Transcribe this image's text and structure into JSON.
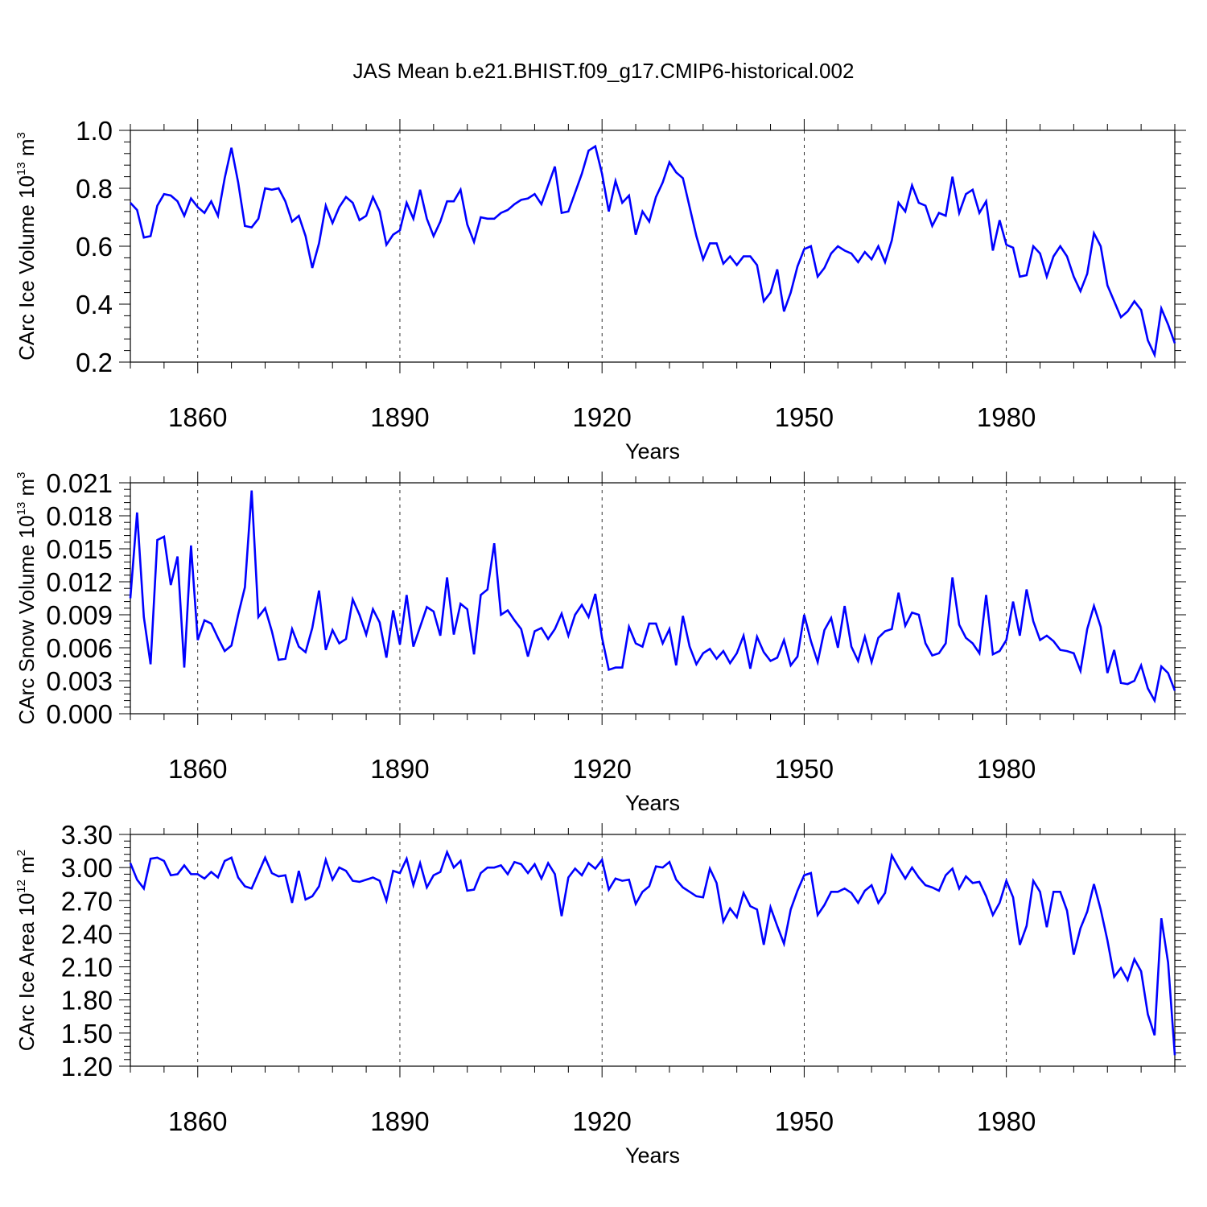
{
  "figure_title": "JAS Mean b.e21.BHIST.f09_g17.CMIP6-historical.002",
  "series_color": "#0000ff",
  "chart_data": [
    {
      "type": "line",
      "title": "",
      "xlabel": "Years",
      "ylabel_parts": [
        "CArc Ice Volume 10",
        "13",
        " m",
        "3"
      ],
      "xlim": [
        1850,
        2005
      ],
      "ylim": [
        0.2,
        1.0
      ],
      "xticks": [
        1860,
        1890,
        1920,
        1950,
        1980
      ],
      "xtick_labels": [
        "1860",
        "1890",
        "1920",
        "1950",
        "1980"
      ],
      "yticks": [
        0.2,
        0.4,
        0.6,
        0.8,
        1.0
      ],
      "ytick_labels": [
        "0.2",
        "0.4",
        "0.6",
        "0.8",
        "1.0"
      ],
      "x_start": 1850,
      "series": [
        {
          "name": "CArc Ice Volume",
          "values": [
            0.75,
            0.725,
            0.63,
            0.635,
            0.74,
            0.78,
            0.775,
            0.755,
            0.705,
            0.765,
            0.735,
            0.715,
            0.755,
            0.705,
            0.835,
            0.94,
            0.82,
            0.67,
            0.665,
            0.695,
            0.8,
            0.795,
            0.8,
            0.755,
            0.685,
            0.705,
            0.635,
            0.525,
            0.61,
            0.74,
            0.68,
            0.735,
            0.77,
            0.75,
            0.69,
            0.705,
            0.77,
            0.72,
            0.605,
            0.64,
            0.655,
            0.75,
            0.695,
            0.795,
            0.695,
            0.635,
            0.685,
            0.755,
            0.755,
            0.795,
            0.675,
            0.615,
            0.7,
            0.695,
            0.695,
            0.715,
            0.725,
            0.745,
            0.76,
            0.765,
            0.78,
            0.745,
            0.81,
            0.875,
            0.715,
            0.72,
            0.785,
            0.85,
            0.93,
            0.945,
            0.85,
            0.72,
            0.825,
            0.75,
            0.775,
            0.64,
            0.72,
            0.685,
            0.77,
            0.82,
            0.89,
            0.855,
            0.835,
            0.735,
            0.635,
            0.555,
            0.61,
            0.61,
            0.54,
            0.565,
            0.535,
            0.565,
            0.565,
            0.535,
            0.41,
            0.44,
            0.52,
            0.375,
            0.44,
            0.53,
            0.59,
            0.6,
            0.495,
            0.525,
            0.575,
            0.6,
            0.585,
            0.575,
            0.545,
            0.58,
            0.555,
            0.6,
            0.545,
            0.62,
            0.75,
            0.72,
            0.81,
            0.75,
            0.74,
            0.67,
            0.715,
            0.705,
            0.84,
            0.715,
            0.78,
            0.795,
            0.715,
            0.755,
            0.585,
            0.69,
            0.605,
            0.595,
            0.495,
            0.5,
            0.6,
            0.575,
            0.495,
            0.565,
            0.6,
            0.565,
            0.495,
            0.445,
            0.505,
            0.645,
            0.6,
            0.465,
            0.41,
            0.355,
            0.375,
            0.41,
            0.38,
            0.275,
            0.225,
            0.385,
            0.33,
            0.265
          ]
        }
      ]
    },
    {
      "type": "line",
      "title": "",
      "xlabel": "Years",
      "ylabel_parts": [
        "CArc Snow Volume 10",
        "13",
        " m",
        "3"
      ],
      "xlim": [
        1850,
        2005
      ],
      "ylim": [
        0.0,
        0.021
      ],
      "xticks": [
        1860,
        1890,
        1920,
        1950,
        1980
      ],
      "xtick_labels": [
        "1860",
        "1890",
        "1920",
        "1950",
        "1980"
      ],
      "yticks": [
        0.0,
        0.003,
        0.006,
        0.009,
        0.012,
        0.015,
        0.018,
        0.021
      ],
      "ytick_labels": [
        "0.000",
        "0.003",
        "0.006",
        "0.009",
        "0.012",
        "0.015",
        "0.018",
        "0.021"
      ],
      "x_start": 1850,
      "series": [
        {
          "name": "CArc Snow Volume",
          "values": [
            0.0105,
            0.0183,
            0.0088,
            0.0045,
            0.0158,
            0.0161,
            0.0117,
            0.0143,
            0.0042,
            0.0153,
            0.0067,
            0.0085,
            0.0082,
            0.0069,
            0.0057,
            0.0062,
            0.009,
            0.0115,
            0.0203,
            0.0088,
            0.0096,
            0.0075,
            0.0049,
            0.005,
            0.0077,
            0.0061,
            0.0056,
            0.0078,
            0.0112,
            0.0058,
            0.0076,
            0.0064,
            0.0068,
            0.0104,
            0.009,
            0.0072,
            0.0095,
            0.0083,
            0.0051,
            0.0094,
            0.0063,
            0.0108,
            0.0061,
            0.0079,
            0.0097,
            0.0093,
            0.0071,
            0.0124,
            0.0072,
            0.01,
            0.0095,
            0.0054,
            0.0108,
            0.0113,
            0.0155,
            0.009,
            0.0094,
            0.0085,
            0.0077,
            0.0052,
            0.0075,
            0.0078,
            0.0068,
            0.0077,
            0.0091,
            0.0071,
            0.009,
            0.0099,
            0.0088,
            0.0109,
            0.0069,
            0.004,
            0.0042,
            0.0042,
            0.0079,
            0.0064,
            0.0061,
            0.0082,
            0.0082,
            0.0064,
            0.0077,
            0.0044,
            0.0089,
            0.0061,
            0.0045,
            0.0055,
            0.0059,
            0.005,
            0.0057,
            0.0046,
            0.0055,
            0.0071,
            0.0041,
            0.007,
            0.0056,
            0.0048,
            0.0051,
            0.0067,
            0.0044,
            0.0052,
            0.009,
            0.0066,
            0.0047,
            0.0076,
            0.0087,
            0.006,
            0.0098,
            0.0061,
            0.0048,
            0.007,
            0.0047,
            0.0069,
            0.0075,
            0.0077,
            0.011,
            0.008,
            0.0092,
            0.009,
            0.0064,
            0.0053,
            0.0055,
            0.0064,
            0.0124,
            0.0081,
            0.0069,
            0.0064,
            0.0055,
            0.0108,
            0.0054,
            0.0057,
            0.0067,
            0.0102,
            0.0071,
            0.0113,
            0.0084,
            0.0067,
            0.0071,
            0.0066,
            0.0058,
            0.0057,
            0.0055,
            0.0039,
            0.0077,
            0.0098,
            0.0079,
            0.0037,
            0.0058,
            0.0028,
            0.0027,
            0.003,
            0.0044,
            0.0023,
            0.0012,
            0.0043,
            0.0037,
            0.0021
          ]
        }
      ]
    },
    {
      "type": "line",
      "title": "",
      "xlabel": "Years",
      "ylabel_parts": [
        "CArc Ice Area 10",
        "12",
        " m",
        "2"
      ],
      "xlim": [
        1850,
        2005
      ],
      "ylim": [
        1.2,
        3.3
      ],
      "xticks": [
        1860,
        1890,
        1920,
        1950,
        1980
      ],
      "xtick_labels": [
        "1860",
        "1890",
        "1920",
        "1950",
        "1980"
      ],
      "yticks": [
        1.2,
        1.5,
        1.8,
        2.1,
        2.4,
        2.7,
        3.0,
        3.3
      ],
      "ytick_labels": [
        "1.20",
        "1.50",
        "1.80",
        "2.10",
        "2.40",
        "2.70",
        "3.00",
        "3.30"
      ],
      "x_start": 1850,
      "series": [
        {
          "name": "CArc Ice Area",
          "values": [
            3.04,
            2.89,
            2.81,
            3.08,
            3.09,
            3.06,
            2.93,
            2.94,
            3.02,
            2.94,
            2.94,
            2.9,
            2.96,
            2.91,
            3.06,
            3.09,
            2.91,
            2.83,
            2.81,
            2.95,
            3.09,
            2.95,
            2.92,
            2.93,
            2.68,
            2.97,
            2.71,
            2.74,
            2.83,
            3.07,
            2.89,
            3.0,
            2.97,
            2.88,
            2.87,
            2.89,
            2.91,
            2.88,
            2.7,
            2.97,
            2.95,
            3.08,
            2.84,
            3.04,
            2.82,
            2.93,
            2.96,
            3.14,
            3.0,
            3.06,
            2.79,
            2.8,
            2.95,
            3.0,
            3.0,
            3.02,
            2.94,
            3.05,
            3.03,
            2.95,
            3.03,
            2.9,
            3.04,
            2.94,
            2.56,
            2.91,
            2.99,
            2.93,
            3.04,
            2.99,
            3.07,
            2.8,
            2.9,
            2.88,
            2.89,
            2.67,
            2.78,
            2.83,
            3.01,
            3.0,
            3.05,
            2.89,
            2.82,
            2.78,
            2.74,
            2.73,
            2.99,
            2.86,
            2.51,
            2.63,
            2.55,
            2.77,
            2.65,
            2.62,
            2.3,
            2.64,
            2.47,
            2.31,
            2.62,
            2.79,
            2.93,
            2.95,
            2.57,
            2.66,
            2.78,
            2.78,
            2.81,
            2.77,
            2.68,
            2.79,
            2.84,
            2.68,
            2.77,
            3.11,
            3.0,
            2.9,
            3.0,
            2.91,
            2.84,
            2.82,
            2.79,
            2.93,
            2.99,
            2.81,
            2.92,
            2.86,
            2.87,
            2.74,
            2.57,
            2.68,
            2.88,
            2.73,
            2.3,
            2.47,
            2.88,
            2.78,
            2.46,
            2.78,
            2.78,
            2.61,
            2.21,
            2.45,
            2.6,
            2.85,
            2.62,
            2.34,
            2.01,
            2.09,
            1.98,
            2.17,
            2.06,
            1.67,
            1.48,
            2.54,
            2.14,
            1.3
          ]
        }
      ]
    }
  ]
}
